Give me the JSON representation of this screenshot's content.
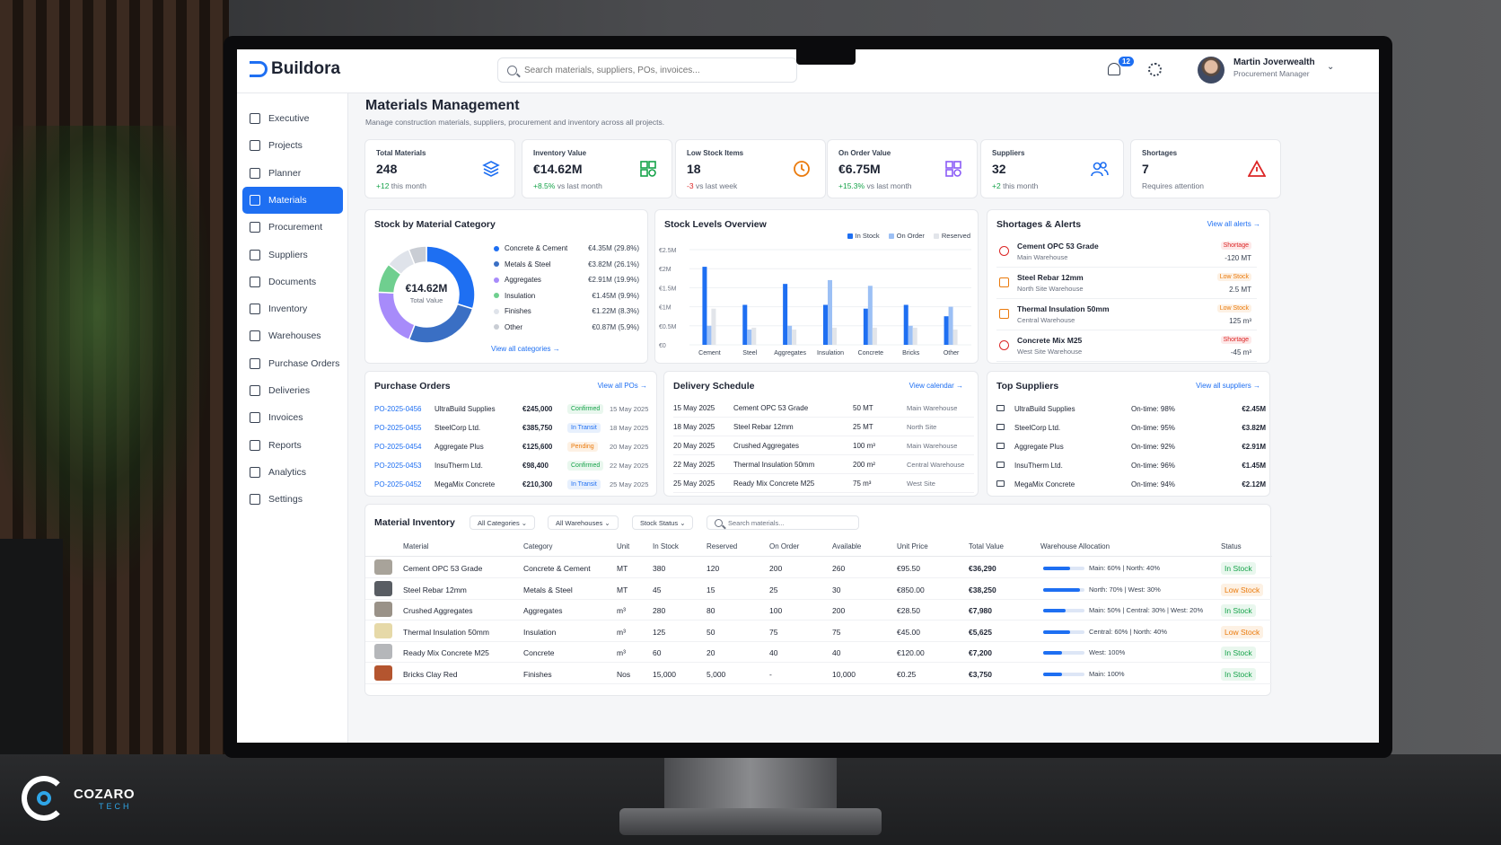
{
  "app": {
    "name": "Buildora"
  },
  "search": {
    "placeholder": "Search materials, suppliers, POs, invoices..."
  },
  "notifications": {
    "count": "12"
  },
  "user": {
    "name": "Martin Joverwealth",
    "role": "Procurement Manager"
  },
  "sidebar": {
    "items": [
      {
        "label": "Executive",
        "icon": "home-icon"
      },
      {
        "label": "Projects",
        "icon": "projects-icon"
      },
      {
        "label": "Planner",
        "icon": "planner-icon"
      },
      {
        "label": "Materials",
        "icon": "materials-icon",
        "active": true
      },
      {
        "label": "Procurement",
        "icon": "cart-icon"
      },
      {
        "label": "Suppliers",
        "icon": "users-icon"
      },
      {
        "label": "Documents",
        "icon": "document-icon"
      },
      {
        "label": "Inventory",
        "icon": "inventory-icon"
      },
      {
        "label": "Warehouses",
        "icon": "warehouse-icon"
      },
      {
        "label": "Purchase Orders",
        "icon": "po-icon"
      },
      {
        "label": "Deliveries",
        "icon": "truck-icon"
      },
      {
        "label": "Invoices",
        "icon": "invoice-icon"
      },
      {
        "label": "Reports",
        "icon": "reports-icon"
      },
      {
        "label": "Analytics",
        "icon": "analytics-icon"
      },
      {
        "label": "Settings",
        "icon": "gear-icon"
      }
    ]
  },
  "page": {
    "title": "Materials Management",
    "subtitle": "Manage construction materials, suppliers, procurement and inventory across all projects."
  },
  "kpis": [
    {
      "label": "Total Materials",
      "value": "248",
      "delta": "+12",
      "note": "this month",
      "color": "#16a34a",
      "icon": "layers-icon"
    },
    {
      "label": "Inventory Value",
      "value": "€14.62M",
      "delta": "+8.5%",
      "note": "vs last month",
      "color": "#16a34a",
      "icon": "boxes-icon"
    },
    {
      "label": "Low Stock Items",
      "value": "18",
      "delta": "-3",
      "note": "vs last week",
      "color": "#dc2626",
      "icon": "clock-alert-icon"
    },
    {
      "label": "On Order Value",
      "value": "€6.75M",
      "delta": "+15.3%",
      "note": "vs last month",
      "color": "#16a34a",
      "icon": "cart-icon"
    },
    {
      "label": "Suppliers",
      "value": "32",
      "delta": "+2",
      "note": "this month",
      "color": "#16a34a",
      "icon": "users-icon"
    },
    {
      "label": "Shortages",
      "value": "7",
      "delta": "",
      "note": "Requires attention",
      "color": "#dc2626",
      "icon": "warning-icon"
    }
  ],
  "stock_category": {
    "title": "Stock by Material Category",
    "center_value": "€14.62M",
    "center_label": "Total Value",
    "link": "View all categories →",
    "chart_data": {
      "type": "pie",
      "categories": [
        "Concrete & Cement",
        "Metals & Steel",
        "Aggregates",
        "Insulation",
        "Finishes",
        "Other"
      ],
      "values": [
        4.35,
        3.82,
        2.91,
        1.45,
        1.22,
        0.87
      ],
      "value_labels": [
        "€4.35M (29.8%)",
        "€3.82M (26.1%)",
        "€2.91M (19.9%)",
        "€1.45M (9.9%)",
        "€1.22M (8.3%)",
        "€0.87M (5.9%)"
      ],
      "colors": [
        "#1e6ff2",
        "#3a6fc4",
        "#a78bfa",
        "#6fcf8f",
        "#dfe3ea",
        "#c9cdd4"
      ]
    }
  },
  "stock_levels": {
    "title": "Stock Levels Overview",
    "chart_data": {
      "type": "bar",
      "categories": [
        "Cement",
        "Steel",
        "Aggregates",
        "Insulation",
        "Concrete",
        "Bricks",
        "Other"
      ],
      "series": [
        {
          "name": "In Stock",
          "values": [
            2.05,
            1.05,
            1.6,
            1.05,
            0.95,
            1.05,
            0.75
          ],
          "color": "#1e6ff2"
        },
        {
          "name": "On Order",
          "values": [
            0.5,
            0.4,
            0.5,
            1.7,
            1.55,
            0.5,
            1.0
          ],
          "color": "#9cc0f5"
        },
        {
          "name": "Reserved",
          "values": [
            0.95,
            0.45,
            0.4,
            0.45,
            0.45,
            0.45,
            0.4
          ],
          "color": "#e2e5ea"
        }
      ],
      "yticks": [
        "€2.5M",
        "€2M",
        "€1.5M",
        "€1M",
        "€0.5M",
        "€0"
      ],
      "ylim": [
        0,
        2.5
      ]
    }
  },
  "alerts": {
    "title": "Shortages & Alerts",
    "link": "View all alerts →",
    "items": [
      {
        "name": "Cement OPC 53 Grade",
        "location": "Main Warehouse",
        "tag": "Shortage",
        "qty": "-120 MT",
        "icon": "alert-circle-icon"
      },
      {
        "name": "Steel Rebar 12mm",
        "location": "North Site Warehouse",
        "tag": "Low Stock",
        "qty": "2.5 MT",
        "icon": "box-icon"
      },
      {
        "name": "Thermal Insulation 50mm",
        "location": "Central Warehouse",
        "tag": "Low Stock",
        "qty": "125 m³",
        "icon": "box-icon"
      },
      {
        "name": "Concrete Mix M25",
        "location": "West Site Warehouse",
        "tag": "Shortage",
        "qty": "-45 m³",
        "icon": "warning-icon"
      }
    ]
  },
  "purchase_orders": {
    "title": "Purchase Orders",
    "link": "View all POs →",
    "rows": [
      {
        "id": "PO-2025-0456",
        "supplier": "UltraBuild Supplies",
        "amount": "€245,000",
        "status": "Confirmed",
        "date": "15 May 2025"
      },
      {
        "id": "PO-2025-0455",
        "supplier": "SteelCorp Ltd.",
        "amount": "€385,750",
        "status": "In Transit",
        "date": "18 May 2025"
      },
      {
        "id": "PO-2025-0454",
        "supplier": "Aggregate Plus",
        "amount": "€125,600",
        "status": "Pending",
        "date": "20 May 2025"
      },
      {
        "id": "PO-2025-0453",
        "supplier": "InsuTherm Ltd.",
        "amount": "€98,400",
        "status": "Confirmed",
        "date": "22 May 2025"
      },
      {
        "id": "PO-2025-0452",
        "supplier": "MegaMix Concrete",
        "amount": "€210,300",
        "status": "In Transit",
        "date": "25 May 2025"
      }
    ]
  },
  "deliveries": {
    "title": "Delivery Schedule",
    "link": "View calendar →",
    "rows": [
      {
        "date": "15 May 2025",
        "material": "Cement OPC 53 Grade",
        "qty": "50 MT",
        "location": "Main Warehouse"
      },
      {
        "date": "18 May 2025",
        "material": "Steel Rebar 12mm",
        "qty": "25 MT",
        "location": "North Site"
      },
      {
        "date": "20 May 2025",
        "material": "Crushed Aggregates",
        "qty": "100 m³",
        "location": "Main Warehouse"
      },
      {
        "date": "22 May 2025",
        "material": "Thermal Insulation 50mm",
        "qty": "200 m²",
        "location": "Central Warehouse"
      },
      {
        "date": "25 May 2025",
        "material": "Ready Mix Concrete M25",
        "qty": "75 m³",
        "location": "West Site"
      }
    ]
  },
  "top_suppliers": {
    "title": "Top Suppliers",
    "link": "View all suppliers →",
    "rows": [
      {
        "name": "UltraBuild Supplies",
        "ontime": "On-time: 98%",
        "value": "€2.45M"
      },
      {
        "name": "SteelCorp Ltd.",
        "ontime": "On-time: 95%",
        "value": "€3.82M"
      },
      {
        "name": "Aggregate Plus",
        "ontime": "On-time: 92%",
        "value": "€2.91M"
      },
      {
        "name": "InsuTherm Ltd.",
        "ontime": "On-time: 96%",
        "value": "€1.45M"
      },
      {
        "name": "MegaMix Concrete",
        "ontime": "On-time: 94%",
        "value": "€2.12M"
      }
    ]
  },
  "inventory": {
    "title": "Material Inventory",
    "filters": [
      "All Categories",
      "All Warehouses",
      "Stock Status"
    ],
    "search_placeholder": "Search materials...",
    "columns": [
      "Material",
      "Category",
      "Unit",
      "In Stock",
      "Reserved",
      "On Order",
      "Available",
      "Unit Price",
      "Total Value",
      "Warehouse Allocation",
      "Status"
    ],
    "rows": [
      {
        "material": "Cement OPC 53 Grade",
        "category": "Concrete & Cement",
        "unit": "MT",
        "in_stock": "380",
        "reserved": "120",
        "on_order": "200",
        "available": "260",
        "unit_price": "€95.50",
        "total": "€36,290",
        "allocation": "Main: 60% | North: 40%",
        "alloc_pct": 0.65,
        "status": "In Stock",
        "thumb": "#a8a39a"
      },
      {
        "material": "Steel Rebar 12mm",
        "category": "Metals & Steel",
        "unit": "MT",
        "in_stock": "45",
        "reserved": "15",
        "on_order": "25",
        "available": "30",
        "unit_price": "€850.00",
        "total": "€38,250",
        "allocation": "North: 70% | West: 30%",
        "alloc_pct": 0.9,
        "status": "Low Stock",
        "thumb": "#595d63"
      },
      {
        "material": "Crushed Aggregates",
        "category": "Aggregates",
        "unit": "m³",
        "in_stock": "280",
        "reserved": "80",
        "on_order": "100",
        "available": "200",
        "unit_price": "€28.50",
        "total": "€7,980",
        "allocation": "Main: 50% | Central: 30% | West: 20%",
        "alloc_pct": 0.55,
        "status": "In Stock",
        "thumb": "#9a9288"
      },
      {
        "material": "Thermal Insulation 50mm",
        "category": "Insulation",
        "unit": "m³",
        "in_stock": "125",
        "reserved": "50",
        "on_order": "75",
        "available": "75",
        "unit_price": "€45.00",
        "total": "€5,625",
        "allocation": "Central: 60% | North: 40%",
        "alloc_pct": 0.65,
        "status": "Low Stock",
        "thumb": "#e6d9a8"
      },
      {
        "material": "Ready Mix Concrete M25",
        "category": "Concrete",
        "unit": "m³",
        "in_stock": "60",
        "reserved": "20",
        "on_order": "40",
        "available": "40",
        "unit_price": "€120.00",
        "total": "€7,200",
        "allocation": "West: 100%",
        "alloc_pct": 0.45,
        "status": "In Stock",
        "thumb": "#b5b7ba"
      },
      {
        "material": "Bricks Clay Red",
        "category": "Finishes",
        "unit": "Nos",
        "in_stock": "15,000",
        "reserved": "5,000",
        "on_order": "-",
        "available": "10,000",
        "unit_price": "€0.25",
        "total": "€3,750",
        "allocation": "Main: 100%",
        "alloc_pct": 0.45,
        "status": "In Stock",
        "thumb": "#b4552f"
      }
    ]
  },
  "watermark": {
    "name": "COZARO",
    "tag": "TECH"
  }
}
